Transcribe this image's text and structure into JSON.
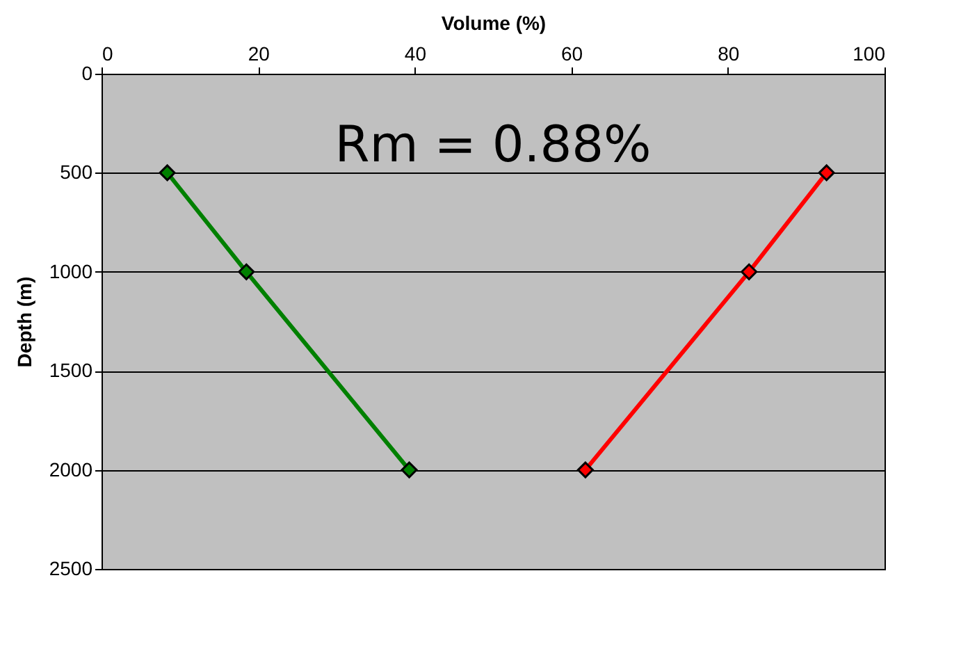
{
  "chart_data": {
    "type": "line",
    "xlabel": "Volume (%)",
    "ylabel": "Depth (m)",
    "xlim": [
      0,
      100
    ],
    "xticks": [
      0,
      20,
      40,
      60,
      80,
      100
    ],
    "ylim": [
      2500,
      0
    ],
    "yticks": [
      0,
      500,
      1000,
      1500,
      2000,
      2500
    ],
    "series": [
      {
        "color": "#008000",
        "x": [
          8.4,
          18.5,
          39.3
        ],
        "values": [
          500,
          1000,
          2000
        ]
      },
      {
        "color": "#ff0000",
        "x": [
          92.6,
          82.7,
          61.8
        ],
        "values": [
          500,
          1000,
          2000
        ]
      }
    ],
    "annotations": [
      "Rm = 0.88%"
    ],
    "grid": "y",
    "marker": "diamond",
    "line_style": "solid"
  }
}
